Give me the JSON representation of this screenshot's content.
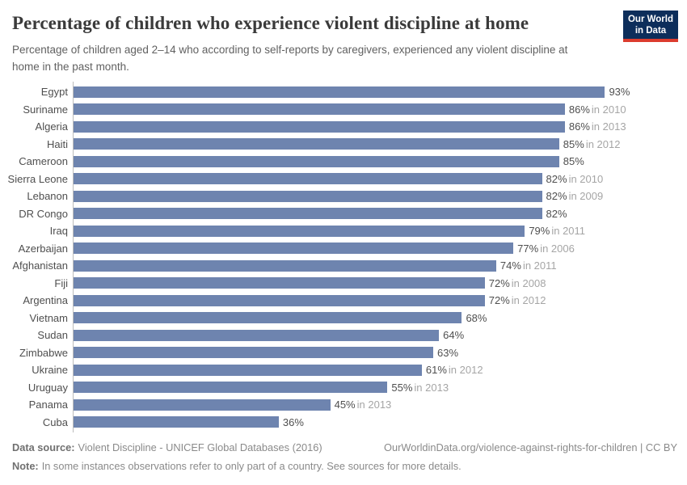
{
  "logo": {
    "line1": "Our World",
    "line2": "in Data",
    "bg_color": "#0d2e5b",
    "stripe_color": "#dc3c2e"
  },
  "chart_data": {
    "type": "bar",
    "orientation": "horizontal",
    "title": "Percentage of children who experience violent discipline at home",
    "subtitle": "Percentage of children aged 2–14 who according to self-reports by caregivers, experienced any violent discipline at home in the past month.",
    "value_unit": "%",
    "xlim": [
      0,
      100
    ],
    "grid": false,
    "bar_color": "#6e84af",
    "axis_color": "#bcbcbc",
    "rows": [
      {
        "country": "Egypt",
        "value": 93,
        "value_label": "93%",
        "year_label": ""
      },
      {
        "country": "Suriname",
        "value": 86,
        "value_label": "86%",
        "year_label": "in 2010"
      },
      {
        "country": "Algeria",
        "value": 86,
        "value_label": "86%",
        "year_label": "in 2013"
      },
      {
        "country": "Haiti",
        "value": 85,
        "value_label": "85%",
        "year_label": "in 2012"
      },
      {
        "country": "Cameroon",
        "value": 85,
        "value_label": "85%",
        "year_label": ""
      },
      {
        "country": "Sierra Leone",
        "value": 82,
        "value_label": "82%",
        "year_label": "in 2010"
      },
      {
        "country": "Lebanon",
        "value": 82,
        "value_label": "82%",
        "year_label": "in 2009"
      },
      {
        "country": "DR Congo",
        "value": 82,
        "value_label": "82%",
        "year_label": ""
      },
      {
        "country": "Iraq",
        "value": 79,
        "value_label": "79%",
        "year_label": "in 2011"
      },
      {
        "country": "Azerbaijan",
        "value": 77,
        "value_label": "77%",
        "year_label": "in 2006"
      },
      {
        "country": "Afghanistan",
        "value": 74,
        "value_label": "74%",
        "year_label": "in 2011"
      },
      {
        "country": "Fiji",
        "value": 72,
        "value_label": "72%",
        "year_label": "in 2008"
      },
      {
        "country": "Argentina",
        "value": 72,
        "value_label": "72%",
        "year_label": "in 2012"
      },
      {
        "country": "Vietnam",
        "value": 68,
        "value_label": "68%",
        "year_label": ""
      },
      {
        "country": "Sudan",
        "value": 64,
        "value_label": "64%",
        "year_label": ""
      },
      {
        "country": "Zimbabwe",
        "value": 63,
        "value_label": "63%",
        "year_label": ""
      },
      {
        "country": "Ukraine",
        "value": 61,
        "value_label": "61%",
        "year_label": "in 2012"
      },
      {
        "country": "Uruguay",
        "value": 55,
        "value_label": "55%",
        "year_label": "in 2013"
      },
      {
        "country": "Panama",
        "value": 45,
        "value_label": "45%",
        "year_label": "in 2013"
      },
      {
        "country": "Cuba",
        "value": 36,
        "value_label": "36%",
        "year_label": ""
      }
    ]
  },
  "footer": {
    "data_source_label": "Data source:",
    "data_source_text": "Violent Discipline - UNICEF Global Databases (2016)",
    "citation": "OurWorldinData.org/violence-against-rights-for-children | CC BY",
    "note_label": "Note:",
    "note_text": "In some instances observations refer to only part of a country. See sources for more details."
  }
}
